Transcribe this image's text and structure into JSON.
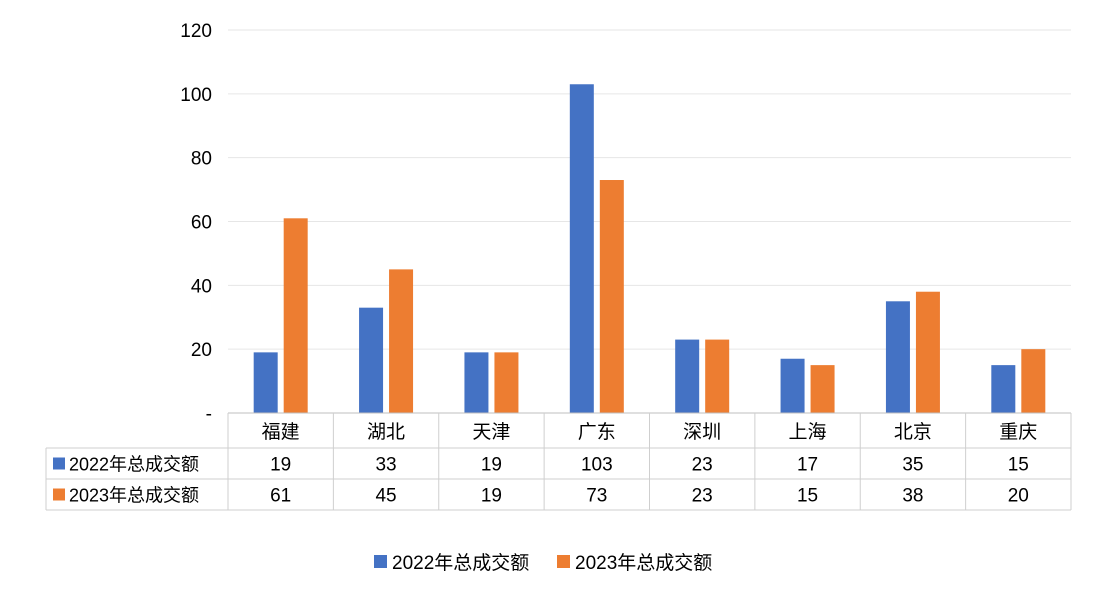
{
  "chart_data": {
    "type": "bar",
    "categories": [
      "福建",
      "湖北",
      "天津",
      "广东",
      "深圳",
      "上海",
      "北京",
      "重庆"
    ],
    "series": [
      {
        "name": "2022年总成交额",
        "color": "#4472C4",
        "values": [
          19,
          33,
          19,
          103,
          23,
          17,
          35,
          15
        ]
      },
      {
        "name": "2023年总成交额",
        "color": "#ED7D31",
        "values": [
          61,
          45,
          19,
          73,
          23,
          15,
          38,
          20
        ]
      }
    ],
    "ylim": [
      0,
      120
    ],
    "yticks": [
      0,
      20,
      40,
      60,
      80,
      100,
      120
    ],
    "ytick_labels": [
      "-",
      "20",
      "40",
      "60",
      "80",
      "100",
      "120"
    ],
    "grid": true,
    "data_table": true,
    "legend": "bottom"
  }
}
